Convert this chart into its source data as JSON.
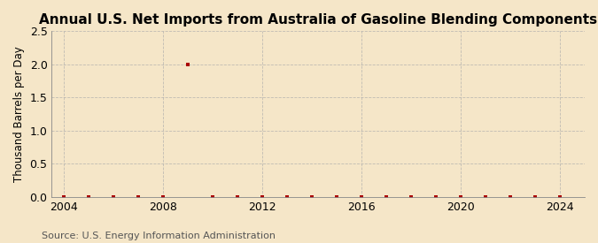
{
  "title": "Annual U.S. Net Imports from Australia of Gasoline Blending Components",
  "ylabel": "Thousand Barrels per Day",
  "source": "Source: U.S. Energy Information Administration",
  "background_color": "#f5e6c8",
  "plot_bg_color": "#f5e6c8",
  "xlim": [
    2003.5,
    2025
  ],
  "ylim": [
    0,
    2.5
  ],
  "yticks": [
    0.0,
    0.5,
    1.0,
    1.5,
    2.0,
    2.5
  ],
  "xticks": [
    2004,
    2008,
    2012,
    2016,
    2020,
    2024
  ],
  "years": [
    2004,
    2005,
    2006,
    2007,
    2008,
    2009,
    2010,
    2011,
    2012,
    2013,
    2014,
    2015,
    2016,
    2017,
    2018,
    2019,
    2020,
    2021,
    2022,
    2023,
    2024
  ],
  "values": [
    0,
    0,
    0,
    0,
    0,
    2.0,
    0,
    0,
    0,
    0,
    0,
    0,
    0,
    0,
    0,
    0,
    0,
    0,
    0,
    0,
    0
  ],
  "marker_color": "#aa0000",
  "grid_color": "#aaaaaa",
  "title_fontsize": 11,
  "label_fontsize": 8.5,
  "tick_fontsize": 9,
  "source_fontsize": 8
}
